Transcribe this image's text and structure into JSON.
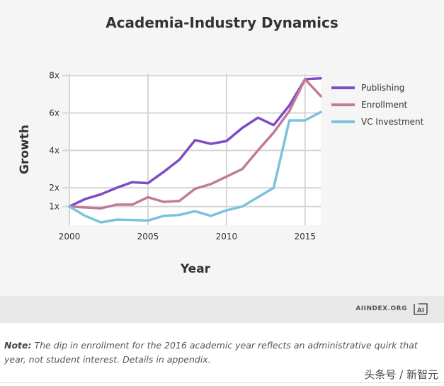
{
  "chart_data": {
    "type": "line",
    "title": "Academia-Industry Dynamics",
    "xlabel": "Year",
    "ylabel": "Growth",
    "xlim": [
      2000,
      2016
    ],
    "ylim": [
      0,
      8.1
    ],
    "x_ticks": [
      2000,
      2005,
      2010,
      2015
    ],
    "y_ticks": [
      {
        "value": 1,
        "label": "1x"
      },
      {
        "value": 2,
        "label": "2x"
      },
      {
        "value": 4,
        "label": "4x"
      },
      {
        "value": 6,
        "label": "6x"
      },
      {
        "value": 8,
        "label": "8x"
      }
    ],
    "grid": true,
    "legend_position": "right",
    "x": [
      2000,
      2001,
      2002,
      2003,
      2004,
      2005,
      2006,
      2007,
      2008,
      2009,
      2010,
      2011,
      2012,
      2013,
      2014,
      2015,
      2016
    ],
    "series": [
      {
        "name": "Publishing",
        "color": "#7e4cc6",
        "values": [
          1.0,
          1.4,
          1.65,
          2.0,
          2.3,
          2.25,
          2.85,
          3.5,
          4.55,
          4.35,
          4.5,
          5.2,
          5.75,
          5.35,
          6.4,
          7.8,
          7.85
        ]
      },
      {
        "name": "Enrollment",
        "color": "#c27b97",
        "values": [
          1.0,
          0.95,
          0.9,
          1.1,
          1.1,
          1.5,
          1.25,
          1.3,
          1.95,
          2.2,
          2.6,
          3.0,
          4.0,
          4.95,
          6.1,
          7.8,
          6.9
        ]
      },
      {
        "name": "VC Investment",
        "color": "#7bc3dd",
        "values": [
          1.0,
          0.5,
          0.15,
          0.3,
          0.28,
          0.25,
          0.5,
          0.55,
          0.75,
          0.5,
          0.8,
          1.0,
          1.5,
          2.0,
          5.6,
          5.6,
          6.05
        ]
      }
    ]
  },
  "branding": {
    "name": "AIINDEX.ORG",
    "logo_text": "AI"
  },
  "note": {
    "label": "Note:",
    "text": " The dip in enrollment for the 2016 academic year reflects an administrative quirk that year, not student interest. Details in appendix."
  },
  "watermark": "头条号 / 新智元"
}
